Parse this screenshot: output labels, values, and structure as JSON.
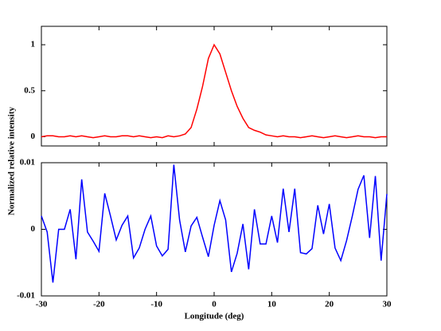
{
  "xlabel": "Longitude (deg)",
  "ylabel": "Normalized relative intensity",
  "chart_data": [
    {
      "type": "line",
      "color": "#ff0000",
      "x": [
        -30,
        -29,
        -28,
        -27,
        -26,
        -25,
        -24,
        -23,
        -22,
        -21,
        -20,
        -19,
        -18,
        -17,
        -16,
        -15,
        -14,
        -13,
        -12,
        -11,
        -10,
        -9,
        -8,
        -7,
        -6,
        -5,
        -4,
        -3,
        -2,
        -1,
        0,
        1,
        2,
        3,
        4,
        5,
        6,
        7,
        8,
        9,
        10,
        11,
        12,
        13,
        14,
        15,
        16,
        17,
        18,
        19,
        20,
        21,
        22,
        23,
        24,
        25,
        26,
        27,
        28,
        29,
        30
      ],
      "values": [
        0.0,
        0.01,
        0.01,
        0.0,
        0.0,
        0.01,
        0.0,
        0.01,
        0.0,
        -0.01,
        0.0,
        0.01,
        0.0,
        0.0,
        0.01,
        0.01,
        0.0,
        0.01,
        0.0,
        -0.01,
        0.0,
        -0.01,
        0.01,
        0.0,
        0.01,
        0.03,
        0.1,
        0.3,
        0.55,
        0.85,
        1.0,
        0.9,
        0.7,
        0.5,
        0.33,
        0.2,
        0.1,
        0.07,
        0.05,
        0.02,
        0.01,
        0.0,
        0.01,
        0.0,
        0.0,
        -0.01,
        0.0,
        0.01,
        0.0,
        -0.01,
        0.0,
        0.01,
        0.0,
        -0.01,
        0.0,
        0.01,
        0.0,
        0.0,
        -0.01,
        0.0,
        0.0
      ],
      "xlim": [
        -30,
        30
      ],
      "xticks": [
        -30,
        -20,
        -10,
        0,
        10,
        20,
        30
      ],
      "ylim": [
        -0.1,
        1.2
      ],
      "yticks": [
        0,
        0.5,
        1
      ]
    },
    {
      "type": "line",
      "color": "#0000ff",
      "x": [
        -30,
        -29,
        -28,
        -27,
        -26,
        -25,
        -24,
        -23,
        -22,
        -21,
        -20,
        -19,
        -18,
        -17,
        -16,
        -15,
        -14,
        -13,
        -12,
        -11,
        -10,
        -9,
        -8,
        -7,
        -6,
        -5,
        -4,
        -3,
        -2,
        -1,
        0,
        1,
        2,
        3,
        4,
        5,
        6,
        7,
        8,
        9,
        10,
        11,
        12,
        13,
        14,
        15,
        16,
        17,
        18,
        19,
        20,
        21,
        22,
        23,
        24,
        25,
        26,
        27,
        28,
        29,
        30
      ],
      "values": [
        0.002,
        -0.0004,
        -0.008,
        0,
        0,
        0.003,
        -0.0045,
        0.0075,
        -0.0004,
        -0.0018,
        -0.0033,
        0.0054,
        0.002,
        -0.0016,
        0.0006,
        0.002,
        -0.0043,
        -0.0028,
        0,
        0.002,
        -0.0025,
        -0.004,
        -0.003,
        0.0097,
        0.0014,
        -0.0034,
        0.0005,
        0.0018,
        -0.0012,
        -0.0041,
        0.0006,
        0.0043,
        0.0014,
        -0.0064,
        -0.0036,
        0.0008,
        -0.006,
        0.003,
        -0.0022,
        -0.0022,
        0.002,
        -0.002,
        0.0061,
        -0.0004,
        0.0061,
        -0.0035,
        -0.0037,
        -0.0029,
        0.0036,
        -0.0007,
        0.0038,
        -0.0028,
        -0.0047,
        -0.0017,
        0.002,
        0.006,
        0.0081,
        -0.0013,
        0.008,
        -0.0047,
        0.0053
      ],
      "xlim": [
        -30,
        30
      ],
      "xticks": [
        -30,
        -20,
        -10,
        0,
        10,
        20,
        30
      ],
      "xticklabels": true,
      "ylim": [
        -0.01,
        0.01
      ],
      "yticks": [
        -0.01,
        0,
        0.01
      ]
    }
  ]
}
